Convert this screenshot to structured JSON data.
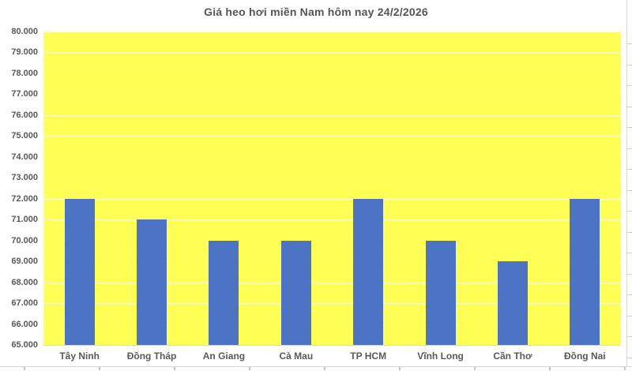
{
  "chart_data": {
    "type": "bar",
    "title": "Giá heo hơi miền Nam hôm nay 24/2/2026",
    "categories": [
      "Tây Ninh",
      "Đồng Tháp",
      "An Giang",
      "Cà Mau",
      "TP HCM",
      "Vĩnh Long",
      "Cần Thơ",
      "Đồng Nai"
    ],
    "values": [
      72000,
      71000,
      70000,
      70000,
      72000,
      70000,
      69000,
      72000
    ],
    "xlabel": "",
    "ylabel": "",
    "ylim": [
      65000,
      80000
    ],
    "ytick_step": 1000,
    "y_tick_labels": [
      "80.000",
      "79.000",
      "78.000",
      "77.000",
      "76.000",
      "75.000",
      "74.000",
      "73.000",
      "72.000",
      "71.000",
      "70.000",
      "69.000",
      "68.000",
      "67.000",
      "66.000",
      "65.000"
    ],
    "grid": true,
    "legend": "none",
    "colors": {
      "plot_background": "#FFFF55",
      "bar_fill": "#4C73C4",
      "gridline": "rgba(255,255,255,0.62)",
      "axis_line": "#D9D9D9",
      "text": "#595959",
      "title_text": "#555555"
    }
  }
}
